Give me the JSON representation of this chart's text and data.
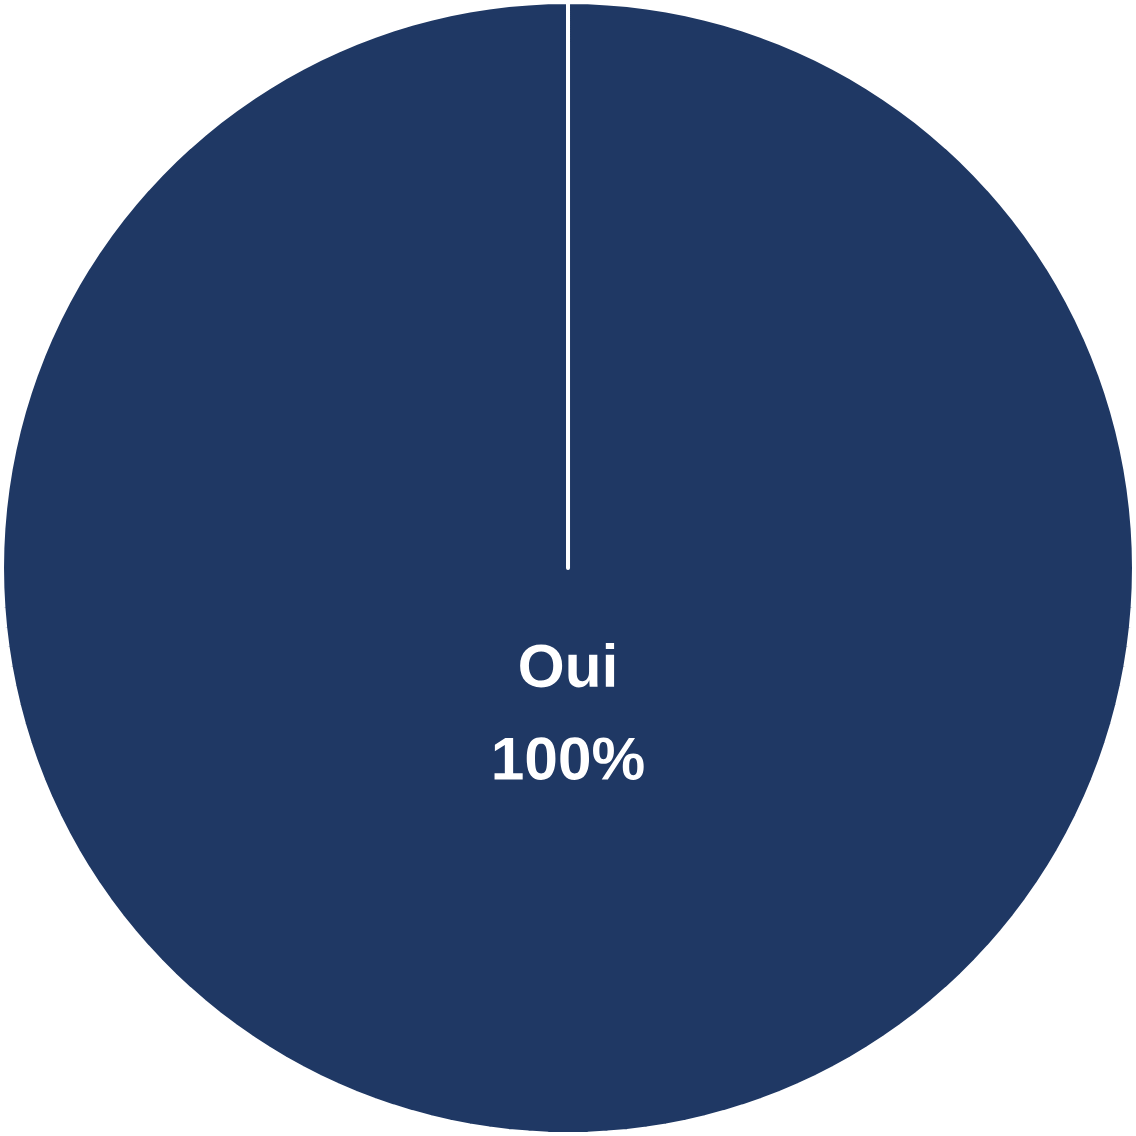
{
  "chart_data": {
    "type": "pie",
    "categories": [
      "Oui"
    ],
    "values": [
      100
    ],
    "colors": [
      "#1f3864"
    ],
    "value_labels": [
      "100%"
    ]
  }
}
